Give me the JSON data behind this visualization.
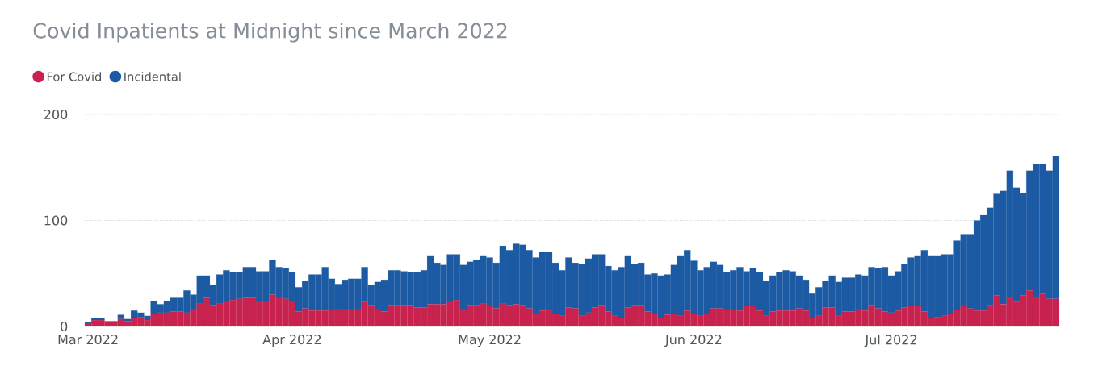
{
  "chart_data": {
    "type": "bar",
    "stacked": true,
    "title": "Covid Inpatients at Midnight since March 2022",
    "x": [
      "2022-03-01",
      "2022-03-02",
      "2022-03-03",
      "2022-03-04",
      "2022-03-05",
      "2022-03-06",
      "2022-03-07",
      "2022-03-08",
      "2022-03-09",
      "2022-03-10",
      "2022-03-11",
      "2022-03-12",
      "2022-03-13",
      "2022-03-14",
      "2022-03-15",
      "2022-03-16",
      "2022-03-17",
      "2022-03-18",
      "2022-03-19",
      "2022-03-20",
      "2022-03-21",
      "2022-03-22",
      "2022-03-23",
      "2022-03-24",
      "2022-03-25",
      "2022-03-26",
      "2022-03-27",
      "2022-03-28",
      "2022-03-29",
      "2022-03-30",
      "2022-03-31",
      "2022-04-01",
      "2022-04-02",
      "2022-04-03",
      "2022-04-04",
      "2022-04-05",
      "2022-04-06",
      "2022-04-07",
      "2022-04-08",
      "2022-04-09",
      "2022-04-10",
      "2022-04-11",
      "2022-04-12",
      "2022-04-13",
      "2022-04-14",
      "2022-04-15",
      "2022-04-16",
      "2022-04-17",
      "2022-04-18",
      "2022-04-19",
      "2022-04-20",
      "2022-04-21",
      "2022-04-22",
      "2022-04-23",
      "2022-04-24",
      "2022-04-25",
      "2022-04-26",
      "2022-04-27",
      "2022-04-28",
      "2022-04-29",
      "2022-04-30",
      "2022-05-01",
      "2022-05-02",
      "2022-05-03",
      "2022-05-04",
      "2022-05-05",
      "2022-05-06",
      "2022-05-07",
      "2022-05-08",
      "2022-05-09",
      "2022-05-10",
      "2022-05-11",
      "2022-05-12",
      "2022-05-13",
      "2022-05-14",
      "2022-05-15",
      "2022-05-16",
      "2022-05-17",
      "2022-05-18",
      "2022-05-19",
      "2022-05-20",
      "2022-05-21",
      "2022-05-22",
      "2022-05-23",
      "2022-05-24",
      "2022-05-25",
      "2022-05-26",
      "2022-05-27",
      "2022-05-28",
      "2022-05-29",
      "2022-05-30",
      "2022-05-31",
      "2022-06-01",
      "2022-06-02",
      "2022-06-03",
      "2022-06-04",
      "2022-06-05",
      "2022-06-06",
      "2022-06-07",
      "2022-06-08",
      "2022-06-09",
      "2022-06-10",
      "2022-06-11",
      "2022-06-12",
      "2022-06-13",
      "2022-06-14",
      "2022-06-15",
      "2022-06-16",
      "2022-06-17",
      "2022-06-18",
      "2022-06-19",
      "2022-06-20",
      "2022-06-21",
      "2022-06-22",
      "2022-06-23",
      "2022-06-24",
      "2022-06-25",
      "2022-06-26",
      "2022-06-27",
      "2022-06-28",
      "2022-06-29",
      "2022-06-30",
      "2022-07-01",
      "2022-07-02",
      "2022-07-03",
      "2022-07-04",
      "2022-07-05",
      "2022-07-06",
      "2022-07-07",
      "2022-07-08",
      "2022-07-09",
      "2022-07-10",
      "2022-07-11",
      "2022-07-12",
      "2022-07-13",
      "2022-07-14",
      "2022-07-15",
      "2022-07-16",
      "2022-07-17",
      "2022-07-18",
      "2022-07-19",
      "2022-07-20",
      "2022-07-21",
      "2022-07-22",
      "2022-07-23",
      "2022-07-24",
      "2022-07-25",
      "2022-07-26"
    ],
    "series": [
      {
        "name": "For Covid",
        "color": "#c8234e",
        "values": [
          3,
          6,
          6,
          4,
          4,
          7,
          5,
          8,
          9,
          6,
          12,
          13,
          13,
          14,
          14,
          13,
          16,
          22,
          27,
          20,
          22,
          24,
          25,
          26,
          27,
          27,
          24,
          24,
          30,
          28,
          26,
          24,
          14,
          17,
          15,
          15,
          15,
          16,
          16,
          16,
          16,
          16,
          23,
          20,
          16,
          14,
          20,
          20,
          20,
          20,
          18,
          18,
          21,
          21,
          21,
          24,
          25,
          16,
          20,
          20,
          22,
          19,
          17,
          22,
          20,
          21,
          20,
          17,
          12,
          15,
          16,
          12,
          10,
          18,
          17,
          10,
          13,
          18,
          20,
          14,
          10,
          8,
          18,
          20,
          20,
          14,
          12,
          8,
          11,
          12,
          10,
          15,
          12,
          10,
          12,
          17,
          17,
          16,
          16,
          15,
          19,
          19,
          15,
          10,
          14,
          15,
          15,
          15,
          17,
          15,
          8,
          10,
          18,
          18,
          10,
          14,
          14,
          16,
          15,
          20,
          17,
          14,
          13,
          15,
          18,
          19,
          19,
          14,
          8,
          9,
          10,
          12,
          16,
          19,
          17,
          15,
          15,
          20,
          29,
          21,
          28,
          23,
          29,
          34,
          28,
          31,
          26,
          26
        ]
      },
      {
        "name": "Incidental",
        "color": "#1c5aa3",
        "values": [
          1,
          2,
          2,
          1,
          1,
          4,
          2,
          7,
          4,
          4,
          12,
          8,
          11,
          13,
          13,
          21,
          14,
          26,
          21,
          19,
          27,
          29,
          26,
          25,
          29,
          29,
          28,
          28,
          33,
          28,
          29,
          27,
          23,
          26,
          34,
          34,
          41,
          29,
          24,
          28,
          29,
          29,
          33,
          19,
          26,
          30,
          33,
          33,
          32,
          31,
          33,
          35,
          46,
          39,
          37,
          44,
          43,
          42,
          41,
          43,
          45,
          46,
          43,
          54,
          52,
          57,
          57,
          55,
          53,
          55,
          54,
          48,
          43,
          47,
          43,
          49,
          51,
          50,
          48,
          43,
          43,
          48,
          49,
          39,
          40,
          35,
          38,
          40,
          38,
          46,
          57,
          57,
          50,
          43,
          44,
          44,
          41,
          35,
          37,
          41,
          33,
          36,
          36,
          33,
          34,
          36,
          38,
          37,
          31,
          29,
          23,
          27,
          25,
          30,
          32,
          32,
          32,
          33,
          33,
          36,
          38,
          42,
          35,
          37,
          41,
          46,
          48,
          58,
          59,
          58,
          58,
          56,
          65,
          68,
          70,
          85,
          90,
          92,
          96,
          107,
          119,
          108,
          97,
          113,
          125,
          122,
          121,
          135
        ]
      }
    ],
    "xlim": [
      "2022-02-28T12:00",
      "2022-07-26T12:00"
    ],
    "xticks": [
      {
        "value": "2022-03-01",
        "label": "Mar 2022"
      },
      {
        "value": "2022-04-01",
        "label": "Apr 2022"
      },
      {
        "value": "2022-05-01",
        "label": "May 2022"
      },
      {
        "value": "2022-06-01",
        "label": "Jun 2022"
      },
      {
        "value": "2022-07-01",
        "label": "Jul 2022"
      }
    ],
    "ylim": [
      0,
      200
    ],
    "yticks": [
      0,
      100,
      200
    ],
    "grid": "y",
    "legend": "top left"
  }
}
